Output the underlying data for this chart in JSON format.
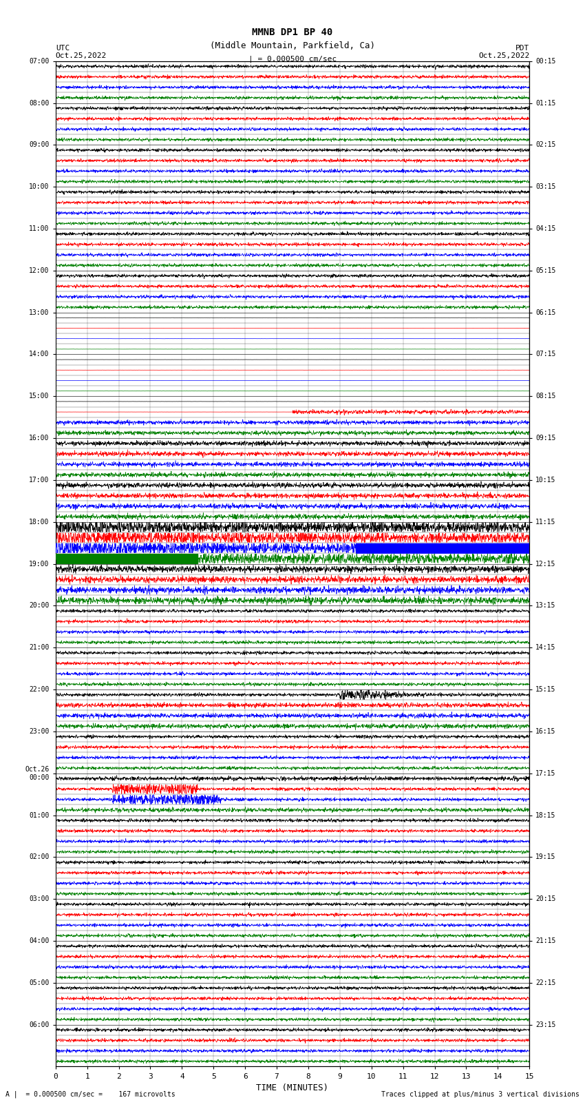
{
  "title_line1": "MMNB DP1 BP 40",
  "title_line2": "(Middle Mountain, Parkfield, Ca)",
  "scale_label": "| = 0.000500 cm/sec",
  "left_label": "UTC",
  "left_date": "Oct.25,2022",
  "right_label": "PDT",
  "right_date": "Oct.25,2022",
  "bottom_xlabel": "TIME (MINUTES)",
  "bottom_note_left": "A |  = 0.000500 cm/sec =    167 microvolts",
  "bottom_note_right": "Traces clipped at plus/minus 3 vertical divisions",
  "utc_tick_hours": [
    "07:00",
    "08:00",
    "09:00",
    "10:00",
    "11:00",
    "12:00",
    "13:00",
    "14:00",
    "15:00",
    "16:00",
    "17:00",
    "18:00",
    "19:00",
    "20:00",
    "21:00",
    "22:00",
    "23:00",
    "Oct.26\n00:00",
    "01:00",
    "02:00",
    "03:00",
    "04:00",
    "05:00",
    "06:00"
  ],
  "pdt_tick_hours": [
    "00:15",
    "01:15",
    "02:15",
    "03:15",
    "04:15",
    "05:15",
    "06:15",
    "07:15",
    "08:15",
    "09:15",
    "10:15",
    "11:15",
    "12:15",
    "13:15",
    "14:15",
    "15:15",
    "16:15",
    "17:15",
    "18:15",
    "19:15",
    "20:15",
    "21:15",
    "22:15",
    "23:15"
  ],
  "num_hours": 24,
  "traces_per_hour": 4,
  "colors_per_hour": [
    "black",
    "red",
    "blue",
    "green"
  ],
  "noise_seed": 12345,
  "bg_color": "white",
  "quiet_hours": [
    6,
    7
  ],
  "earthquake_hour": 11,
  "eq2_hour": 15,
  "green_fill_xstart": 0,
  "green_fill_xend": 4.5,
  "blue_fill_xstart": 9.5,
  "blue_fill_xend": 15,
  "eq2_black_xstart": 9.0,
  "eq2_black_xend": 15
}
